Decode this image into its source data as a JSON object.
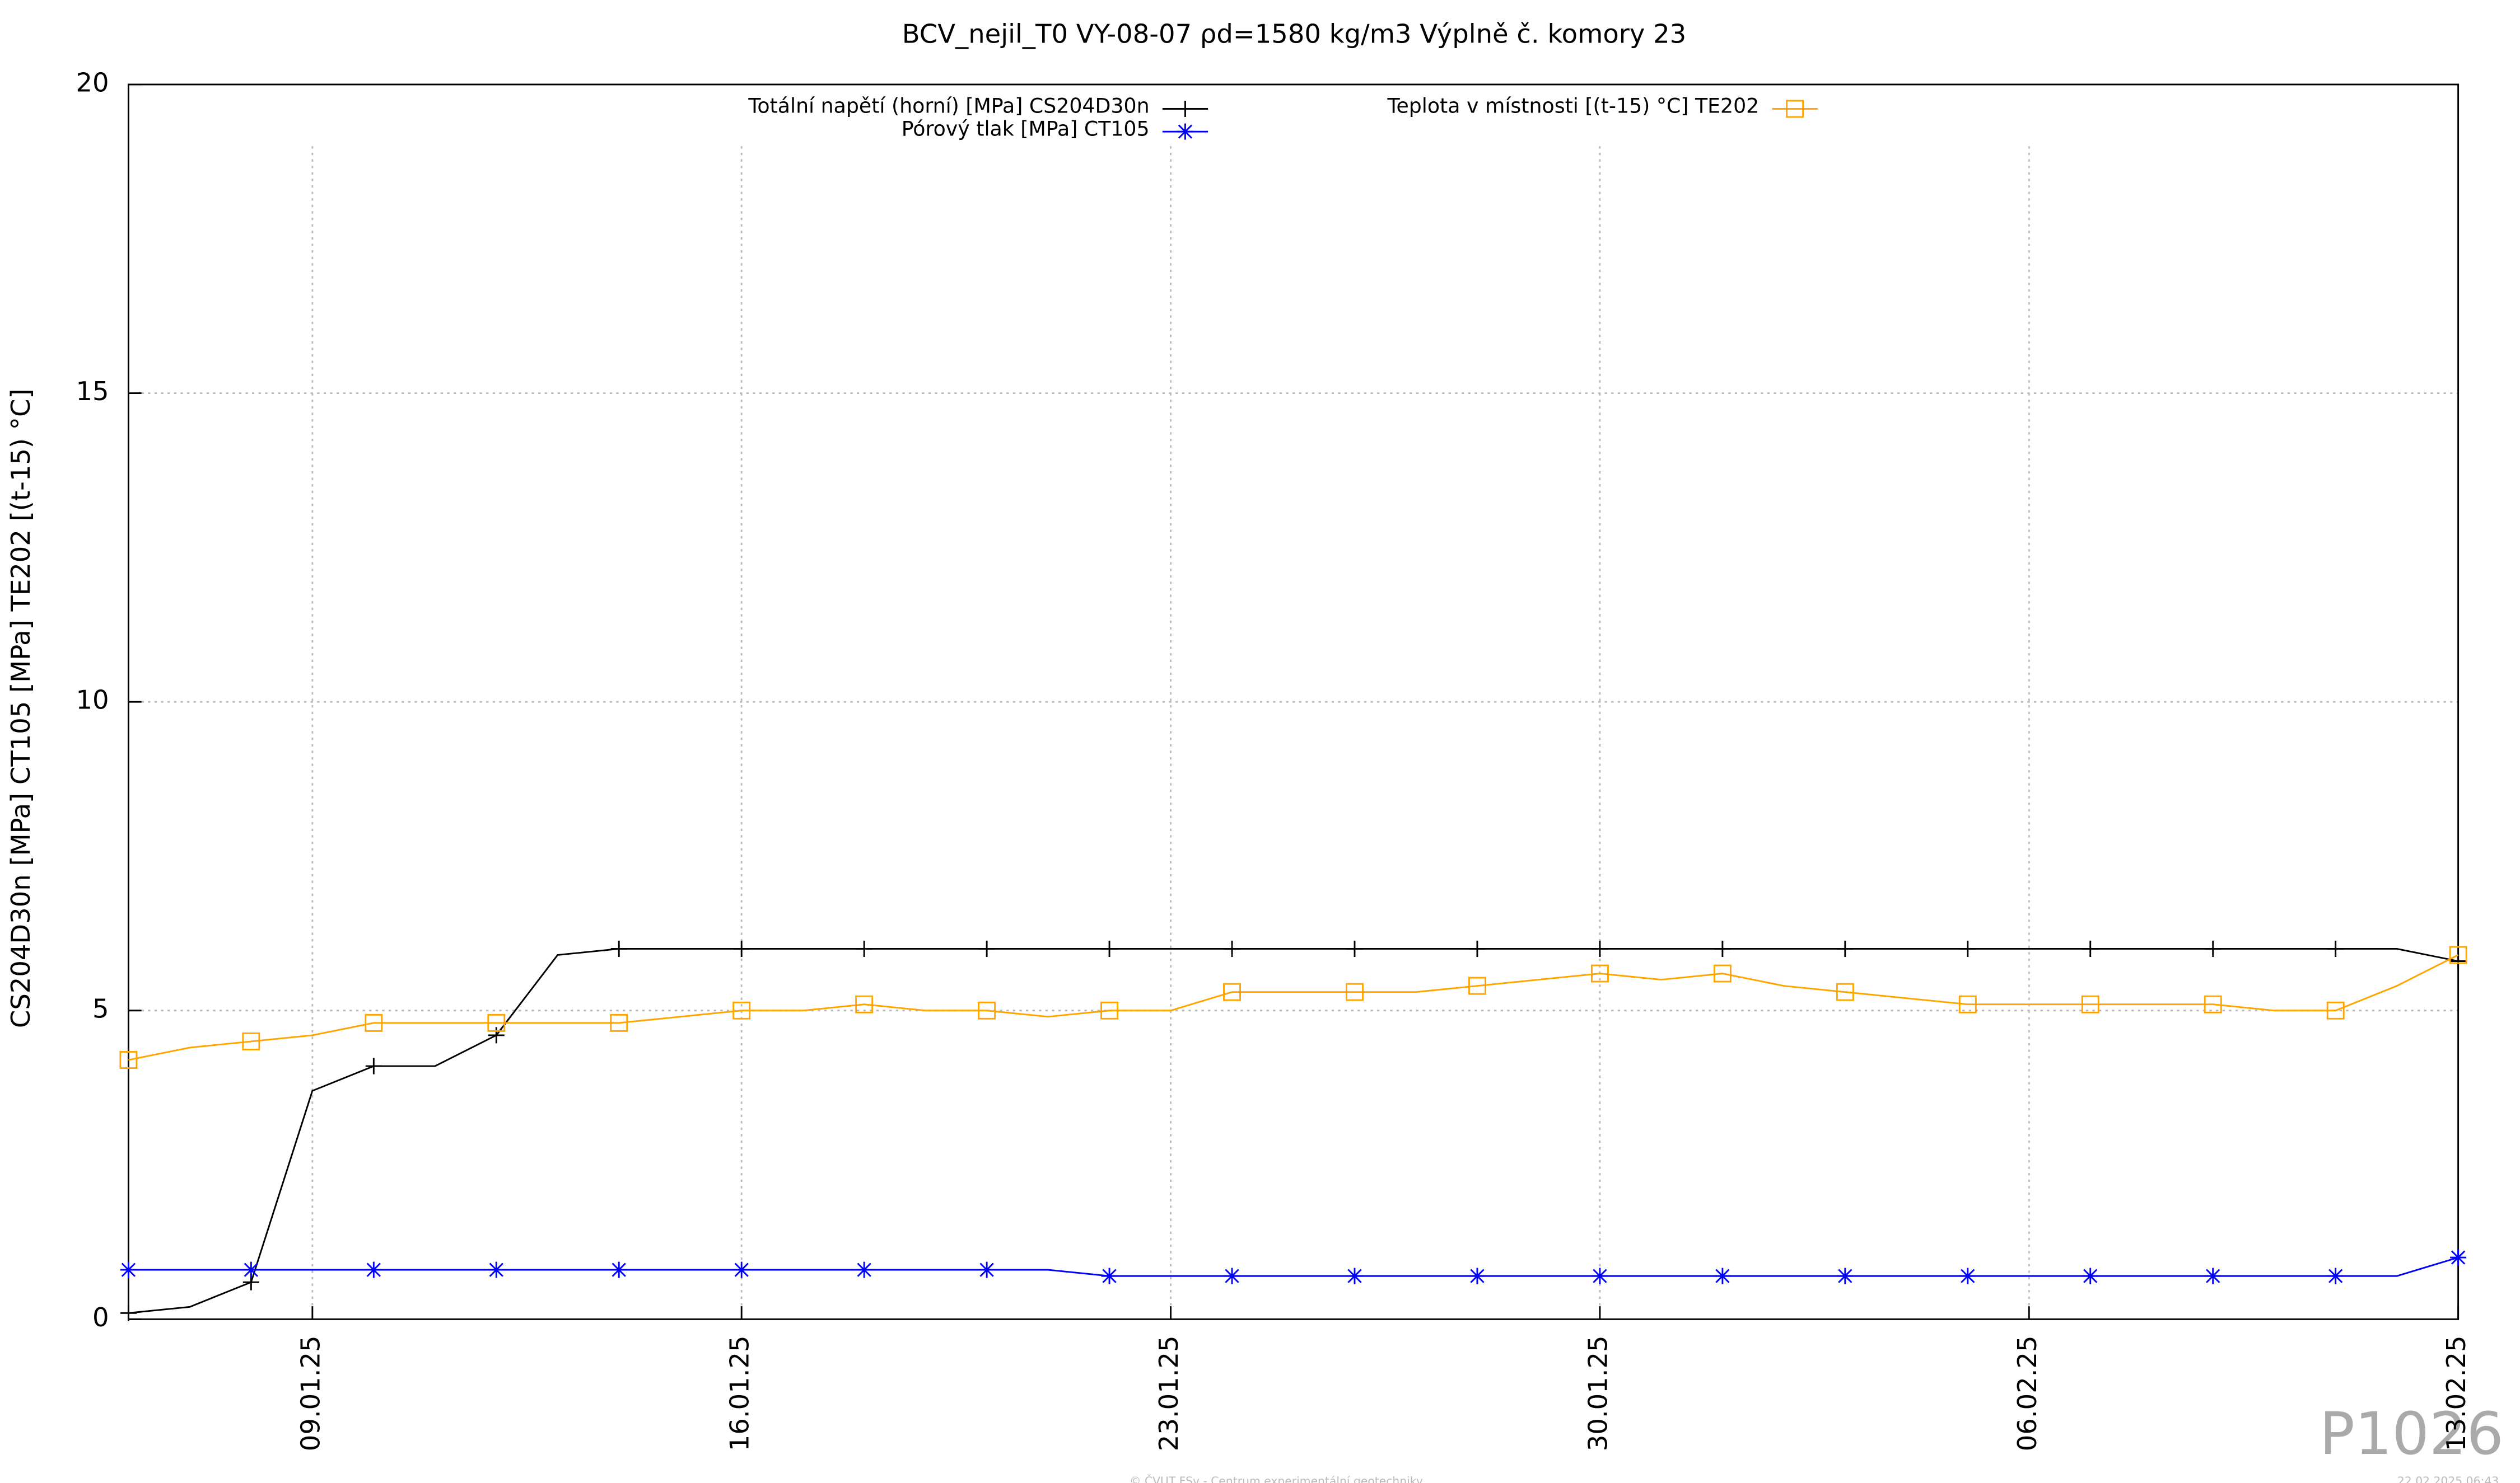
{
  "chart_data": {
    "type": "line",
    "title": "BCV_nejil_T0 VY-08-07 ρd=1580 kg/m3 Výplně č. komory 23",
    "y_label": "CS204D30n [MPa] CT105 [MPa] TE202 [(t-15) °C]",
    "x": [
      "06.01.25",
      "07.01.25",
      "08.01.25",
      "09.01.25",
      "10.01.25",
      "11.01.25",
      "12.01.25",
      "13.01.25",
      "14.01.25",
      "15.01.25",
      "16.01.25",
      "17.01.25",
      "18.01.25",
      "19.01.25",
      "20.01.25",
      "21.01.25",
      "22.01.25",
      "23.01.25",
      "24.01.25",
      "25.01.25",
      "26.01.25",
      "27.01.25",
      "28.01.25",
      "29.01.25",
      "30.01.25",
      "31.01.25",
      "01.02.25",
      "02.02.25",
      "03.02.25",
      "04.02.25",
      "05.02.25",
      "06.02.25",
      "07.02.25",
      "08.02.25",
      "09.02.25",
      "10.02.25",
      "11.02.25",
      "12.02.25",
      "13.02.25"
    ],
    "series": [
      {
        "name": "Totální napětí (horní) [MPa] CS204D30n",
        "color": "#000000",
        "marker": "plus",
        "values": [
          0.1,
          0.2,
          0.6,
          3.7,
          4.1,
          4.1,
          4.6,
          5.9,
          6.0,
          6.0,
          6.0,
          6.0,
          6.0,
          6.0,
          6.0,
          6.0,
          6.0,
          6.0,
          6.0,
          6.0,
          6.0,
          6.0,
          6.0,
          6.0,
          6.0,
          6.0,
          6.0,
          6.0,
          6.0,
          6.0,
          6.0,
          6.0,
          6.0,
          6.0,
          6.0,
          6.0,
          6.0,
          6.0,
          5.8
        ]
      },
      {
        "name": "Pórový tlak [MPa] CT105",
        "color": "#0000ff",
        "marker": "star",
        "values": [
          0.8,
          0.8,
          0.8,
          0.8,
          0.8,
          0.8,
          0.8,
          0.8,
          0.8,
          0.8,
          0.8,
          0.8,
          0.8,
          0.8,
          0.8,
          0.8,
          0.7,
          0.7,
          0.7,
          0.7,
          0.7,
          0.7,
          0.7,
          0.7,
          0.7,
          0.7,
          0.7,
          0.7,
          0.7,
          0.7,
          0.7,
          0.7,
          0.7,
          0.7,
          0.7,
          0.7,
          0.7,
          0.7,
          1.0
        ]
      },
      {
        "name": "Teplota v místnosti [(t-15) °C] TE202",
        "color": "#ffa500",
        "marker": "square",
        "values": [
          4.2,
          4.4,
          4.5,
          4.6,
          4.8,
          4.8,
          4.8,
          4.8,
          4.8,
          4.9,
          5.0,
          5.0,
          5.1,
          5.0,
          5.0,
          4.9,
          5.0,
          5.0,
          5.3,
          5.3,
          5.3,
          5.3,
          5.4,
          5.5,
          5.6,
          5.5,
          5.6,
          5.4,
          5.3,
          5.2,
          5.1,
          5.1,
          5.1,
          5.1,
          5.1,
          5.0,
          5.0,
          5.4,
          5.9
        ]
      }
    ],
    "xlim": [
      "06.01.25",
      "13.02.25"
    ],
    "xticks": [
      "09.01.25",
      "16.01.25",
      "23.01.25",
      "30.01.25",
      "06.02.25",
      "13.02.25"
    ],
    "ylim": [
      0,
      20
    ],
    "yticks": [
      0,
      5,
      10,
      15,
      20
    ],
    "grid": true,
    "footer": "© ČVUT FSv - Centrum experimentální geotechniky",
    "timestamp": "22.02.2025 06:43",
    "watermark": "P1026"
  }
}
